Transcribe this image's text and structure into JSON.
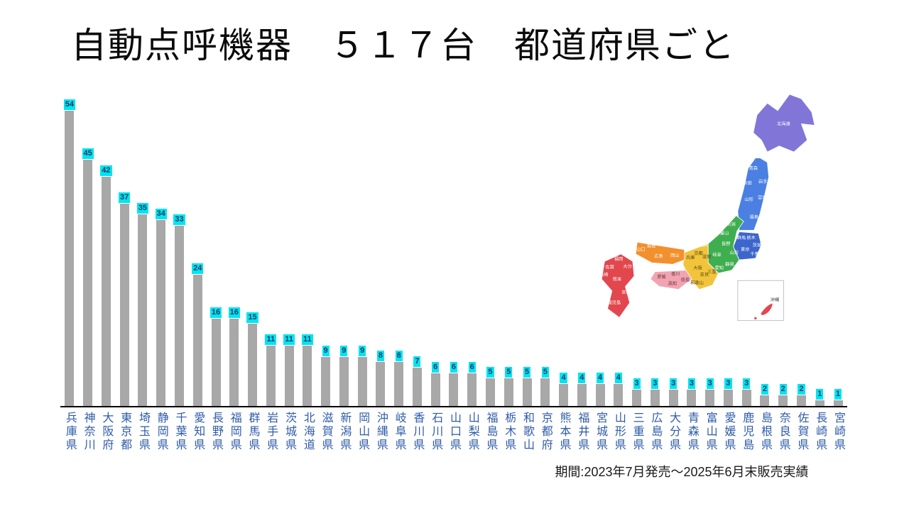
{
  "title": "自動点呼機器　５１７台　都道府県ごと",
  "footer": "期間:2023年7月発売〜2025年6月末販売実績",
  "colors": {
    "bar": "#a8a8a8",
    "value_bg": "#00e4f2",
    "value_text": "#17375e",
    "category_text": "#2e5ba9",
    "axis": "#000000",
    "title_text": "#0a0a0a",
    "footer_text": "#1a1a1a"
  },
  "chart_data": {
    "type": "bar",
    "title": "自動点呼機器 517台 都道府県ごと",
    "total": 517,
    "categories": [
      "兵庫県",
      "神奈川",
      "大阪府",
      "東京都",
      "埼玉県",
      "静岡県",
      "千葉県",
      "愛知県",
      "長野県",
      "福岡県",
      "群馬県",
      "岩手県",
      "茨城県",
      "北海道",
      "滋賀県",
      "新潟県",
      "岡山県",
      "沖縄県",
      "岐阜県",
      "香川県",
      "石川県",
      "山口県",
      "山梨県",
      "福島県",
      "栃木県",
      "和歌山",
      "京都府",
      "熊本県",
      "福井県",
      "宮城県",
      "山形県",
      "三重県",
      "広島県",
      "大分県",
      "青森県",
      "富山県",
      "愛媛県",
      "鹿児島",
      "島根県",
      "奈良県",
      "佐賀県",
      "長崎県",
      "宮崎県"
    ],
    "values": [
      54,
      45,
      42,
      37,
      35,
      34,
      33,
      24,
      16,
      16,
      15,
      11,
      11,
      11,
      9,
      9,
      9,
      8,
      8,
      7,
      6,
      6,
      6,
      5,
      5,
      5,
      5,
      4,
      4,
      4,
      4,
      3,
      3,
      3,
      3,
      3,
      3,
      3,
      2,
      2,
      2,
      1,
      1
    ],
    "xlabel": "",
    "ylabel": "",
    "ylim": [
      0,
      56
    ],
    "grid": false,
    "legend": false,
    "bar_color": "#a8a8a8",
    "value_label_bg": "#00e4f2"
  },
  "map": {
    "colors": {
      "hokkaido": "#8176d8",
      "tohoku": "#4b80e2",
      "kanto": "#3c66cc",
      "chubu": "#3fae4f",
      "kinki": "#f2c43c",
      "chugoku": "#f2902e",
      "shikoku": "#f2a3b1",
      "kyushu": "#e2474e",
      "okinawa": "#e2474e",
      "inset_border": "#c4c4c4"
    },
    "labels": {
      "hokkaido": "北海道",
      "aomori": "青森",
      "akita": "秋田",
      "iwate": "岩手",
      "yamagata": "山形",
      "miyagi": "宮城",
      "fukushima": "福島",
      "niigata": "新潟",
      "gunma": "群馬",
      "tochigi": "栃木",
      "ibaraki": "茨城",
      "tokyo": "東京",
      "chiba": "千葉",
      "yamanashi": "山梨",
      "nagano": "長野",
      "shizuoka": "静岡",
      "aichi": "愛知",
      "gifu": "岐阜",
      "toyama": "富山",
      "ishikawa": "石川",
      "fukui": "福井",
      "shiga": "滋賀",
      "kyoto": "京都",
      "hyogo": "兵庫",
      "osaka": "大阪",
      "nara": "奈良",
      "mie": "三重",
      "wakayama": "和歌山",
      "tottori": "鳥取",
      "shimane": "島根",
      "okayama": "岡山",
      "hiroshima": "広島",
      "yamaguchi": "山口",
      "kagawa": "香川",
      "tokushima": "徳島",
      "ehime": "愛媛",
      "kochi": "高知",
      "fukuoka": "福岡",
      "saga": "佐賀",
      "nagasaki": "長崎",
      "oita": "大分",
      "kumamoto": "熊本",
      "miyazaki": "宮崎",
      "kagoshima": "鹿児島",
      "okinawa": "沖縄"
    }
  }
}
